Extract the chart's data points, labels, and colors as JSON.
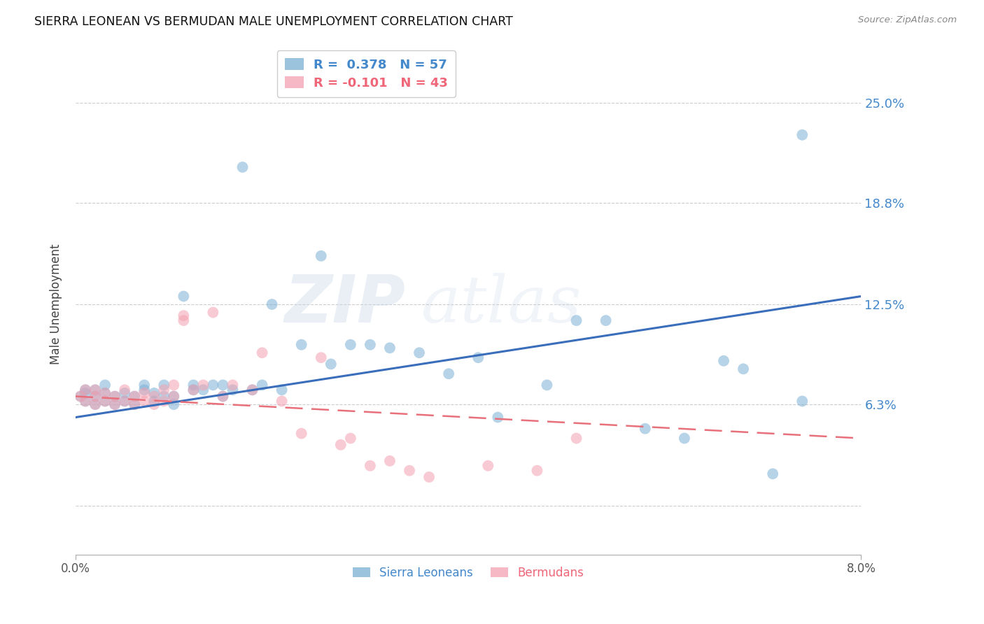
{
  "title": "SIERRA LEONEAN VS BERMUDAN MALE UNEMPLOYMENT CORRELATION CHART",
  "source": "Source: ZipAtlas.com",
  "ylabel": "Male Unemployment",
  "xlim": [
    0.0,
    0.08
  ],
  "ylim": [
    -0.03,
    0.28
  ],
  "ytick_vals": [
    0.0,
    0.063,
    0.125,
    0.188,
    0.25
  ],
  "ytick_labels": [
    "",
    "6.3%",
    "12.5%",
    "18.8%",
    "25.0%"
  ],
  "legend_r1": "R =  0.378   N = 57",
  "legend_r2": "R = -0.101   N = 43",
  "sl_color": "#7BAFD4",
  "berm_color": "#F4A0B0",
  "sl_line_color": "#3A6EBB",
  "berm_line_color": "#E8707A",
  "sl_line": [
    0.055,
    0.13
  ],
  "berm_line": [
    0.068,
    0.042
  ],
  "watermark1": "ZIP",
  "watermark2": "atlas",
  "sl_x": [
    0.0005,
    0.001,
    0.001,
    0.001,
    0.002,
    0.002,
    0.002,
    0.003,
    0.003,
    0.003,
    0.004,
    0.004,
    0.005,
    0.005,
    0.006,
    0.006,
    0.007,
    0.007,
    0.008,
    0.008,
    0.009,
    0.009,
    0.01,
    0.01,
    0.011,
    0.012,
    0.012,
    0.013,
    0.014,
    0.015,
    0.015,
    0.016,
    0.017,
    0.018,
    0.019,
    0.02,
    0.021,
    0.023,
    0.025,
    0.026,
    0.028,
    0.03,
    0.032,
    0.035,
    0.038,
    0.041,
    0.043,
    0.048,
    0.051,
    0.054,
    0.058,
    0.062,
    0.066,
    0.068,
    0.071,
    0.074,
    0.074
  ],
  "sl_y": [
    0.068,
    0.065,
    0.07,
    0.072,
    0.063,
    0.068,
    0.072,
    0.065,
    0.07,
    0.075,
    0.063,
    0.068,
    0.065,
    0.07,
    0.063,
    0.068,
    0.072,
    0.075,
    0.065,
    0.07,
    0.068,
    0.075,
    0.063,
    0.068,
    0.13,
    0.072,
    0.075,
    0.072,
    0.075,
    0.068,
    0.075,
    0.072,
    0.21,
    0.072,
    0.075,
    0.125,
    0.072,
    0.1,
    0.155,
    0.088,
    0.1,
    0.1,
    0.098,
    0.095,
    0.082,
    0.092,
    0.055,
    0.075,
    0.115,
    0.115,
    0.048,
    0.042,
    0.09,
    0.085,
    0.02,
    0.23,
    0.065
  ],
  "berm_x": [
    0.0005,
    0.001,
    0.001,
    0.002,
    0.002,
    0.002,
    0.003,
    0.003,
    0.004,
    0.004,
    0.005,
    0.005,
    0.006,
    0.006,
    0.007,
    0.007,
    0.008,
    0.008,
    0.009,
    0.009,
    0.01,
    0.01,
    0.011,
    0.011,
    0.012,
    0.013,
    0.014,
    0.015,
    0.016,
    0.018,
    0.019,
    0.021,
    0.023,
    0.025,
    0.027,
    0.028,
    0.03,
    0.032,
    0.034,
    0.036,
    0.042,
    0.047,
    0.051
  ],
  "berm_y": [
    0.068,
    0.065,
    0.072,
    0.063,
    0.068,
    0.072,
    0.065,
    0.07,
    0.063,
    0.068,
    0.065,
    0.072,
    0.063,
    0.068,
    0.065,
    0.07,
    0.063,
    0.068,
    0.065,
    0.072,
    0.068,
    0.075,
    0.115,
    0.118,
    0.072,
    0.075,
    0.12,
    0.068,
    0.075,
    0.072,
    0.095,
    0.065,
    0.045,
    0.092,
    0.038,
    0.042,
    0.025,
    0.028,
    0.022,
    0.018,
    0.025,
    0.022,
    0.042
  ]
}
